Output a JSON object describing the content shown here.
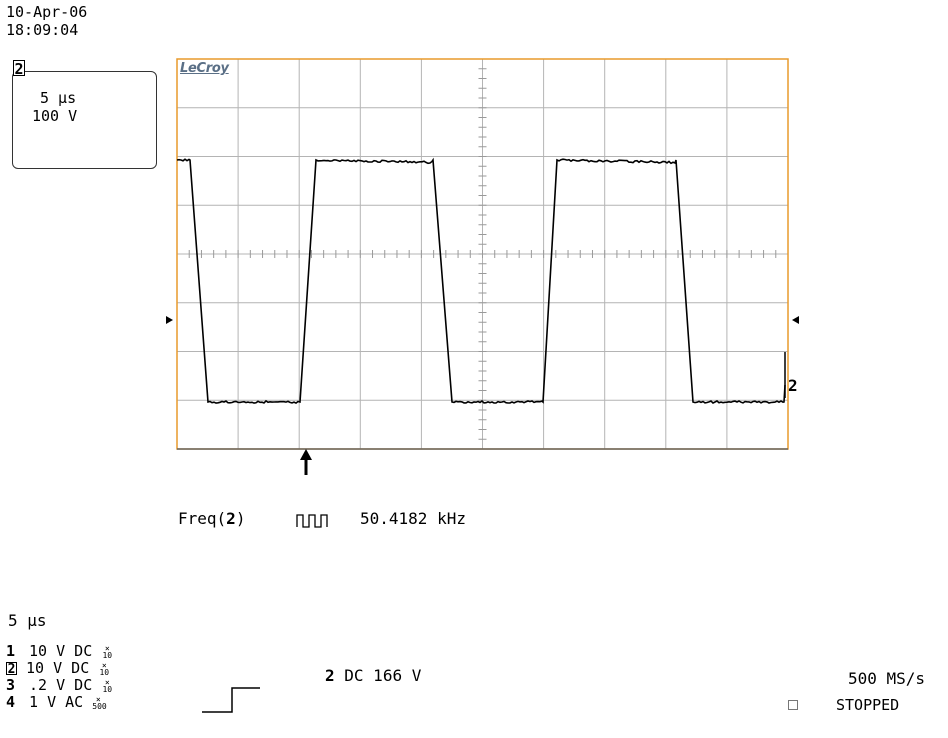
{
  "header": {
    "date": "10-Apr-06",
    "time": "18:09:04"
  },
  "channel_box": {
    "channel": "2",
    "time_div": "5 µs",
    "volt_div": "100 V"
  },
  "logo": "LeCroy",
  "trace_channel_label": "2",
  "measurement": {
    "label_prefix": "Freq(",
    "channel": "2",
    "label_suffix": ")",
    "value": "50.4182 kHz"
  },
  "timebase": "5 µs",
  "channels": [
    {
      "num": "1",
      "volts": "10",
      "unit": "V",
      "coupling": "DC",
      "probe_top": "×",
      "probe_bottom": "10"
    },
    {
      "num": "2",
      "volts": "10",
      "unit": "V",
      "coupling": "DC",
      "probe_top": "×",
      "probe_bottom": "10"
    },
    {
      "num": "3",
      "volts": ".2",
      "unit": "V",
      "coupling": "DC",
      "probe_top": "×",
      "probe_bottom": "10"
    },
    {
      "num": "4",
      "volts": "1",
      "unit": "V",
      "coupling": "AC",
      "probe_top": "×",
      "probe_bottom": "500"
    }
  ],
  "trigger": {
    "channel": "2",
    "info": "DC 166 V"
  },
  "sample_rate": "500 MS/s",
  "status": "STOPPED",
  "colors": {
    "grid_border": "#e89a2c",
    "grid": "#b4b4b4",
    "trace": "#000000",
    "logo": "#5a6f86"
  },
  "icons": {
    "pulse": "pulse-train-icon",
    "trigger_edge": "rising-edge-icon",
    "trigger_pos": "up-arrow-icon"
  }
}
